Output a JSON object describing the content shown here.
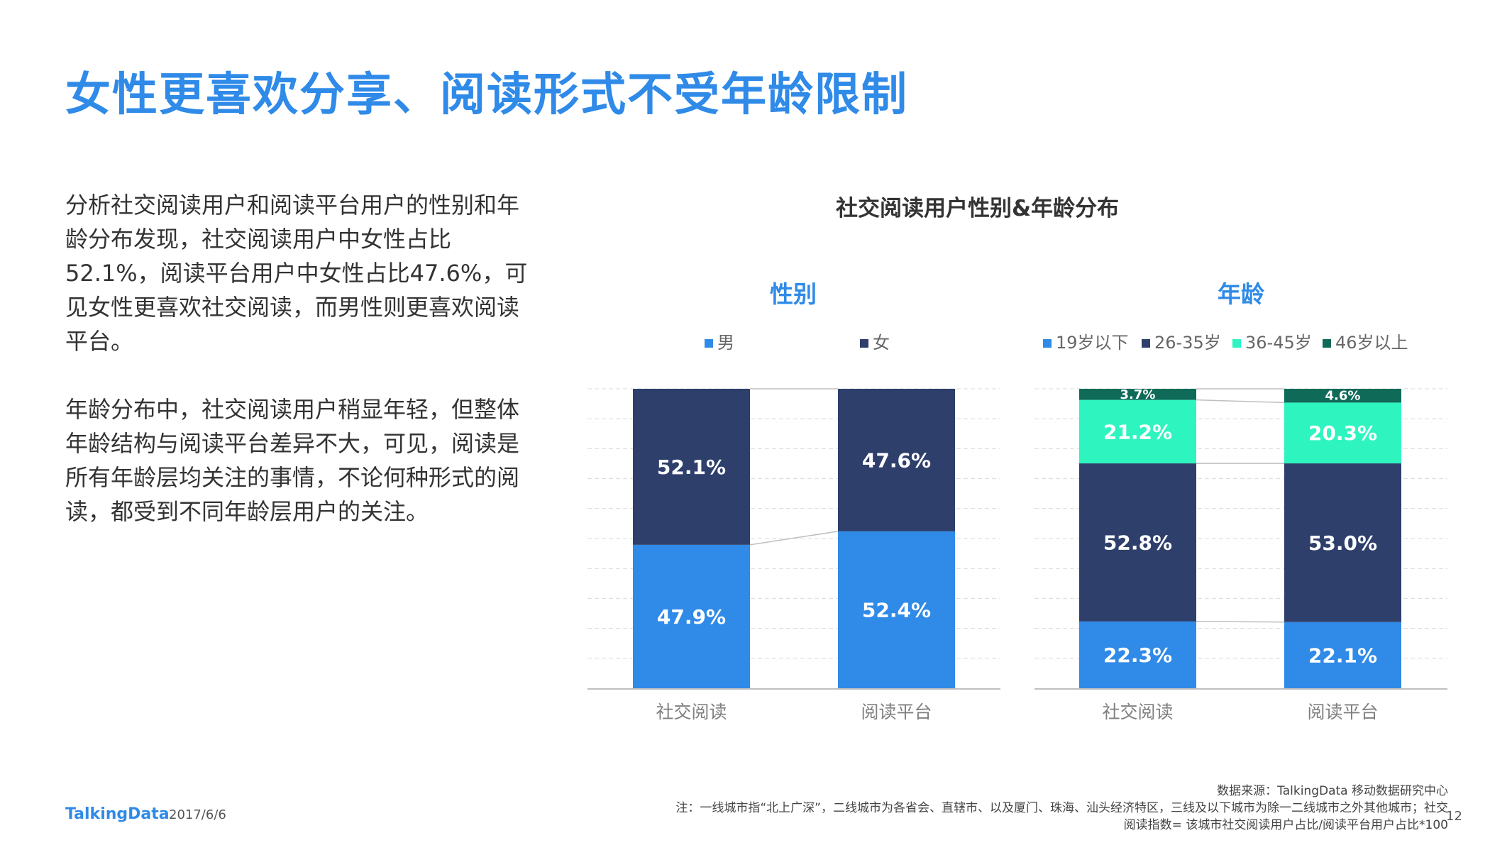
{
  "slide": {
    "title": "女性更喜欢分享、阅读形式不受年龄限制",
    "paragraph1": "分析社交阅读用户和阅读平台用户的性别和年龄分布发现，社交阅读用户中女性占比52.1%，阅读平台用户中女性占比47.6%，可见女性更喜欢社交阅读，而男性则更喜欢阅读平台。",
    "paragraph2": "年龄分布中，社交阅读用户稍显年轻，但整体年龄结构与阅读平台差异不大，可见，阅读是所有年龄层均关注的事情，不论何种形式的阅读，都受到不同年龄层用户的关注。",
    "chart_title": "社交阅读用户性别&年龄分布",
    "footer_logo": "TalkingData",
    "footer_date": "2017/6/6",
    "page_number": "12",
    "source_note": "数据来源：TalkingData 移动数据研究中心",
    "city_note": "注：一线城市指“北上广深”，二线城市为各省会、直辖市、以及厦门、珠海、汕头经济特区，三线及以下城市为除一二线城市之外其他城市；社交",
    "index_note": "阅读指数= 该城市社交阅读用户占比/阅读平台用户占比*100"
  },
  "colors": {
    "title_blue": "#2f8ae8",
    "male": "#2f8ae8",
    "female": "#2e3f6b",
    "age_19": "#2f8ae8",
    "age_26": "#2e3f6b",
    "age_36": "#2ef5c0",
    "age_46": "#0f6b58"
  },
  "chart_data": [
    {
      "type": "bar",
      "stacked": true,
      "percent": true,
      "title": "性别",
      "categories": [
        "社交阅读",
        "阅读平台"
      ],
      "series": [
        {
          "name": "男",
          "values": [
            47.9,
            52.4
          ],
          "labels": [
            "47.9%",
            "52.4%"
          ],
          "color": "#2f8ae8"
        },
        {
          "name": "女",
          "values": [
            52.1,
            47.6
          ],
          "labels": [
            "52.1%",
            "47.6%"
          ],
          "color": "#2e3f6b"
        }
      ],
      "ylim": [
        0,
        100
      ],
      "grid": true,
      "legend": "top"
    },
    {
      "type": "bar",
      "stacked": true,
      "percent": true,
      "title": "年龄",
      "categories": [
        "社交阅读",
        "阅读平台"
      ],
      "series": [
        {
          "name": "19岁以下",
          "values": [
            22.3,
            22.1
          ],
          "labels": [
            "22.3%",
            "22.1%"
          ],
          "color": "#2f8ae8"
        },
        {
          "name": "26-35岁",
          "values": [
            52.8,
            53.0
          ],
          "labels": [
            "52.8%",
            "53.0%"
          ],
          "color": "#2e3f6b"
        },
        {
          "name": "36-45岁",
          "values": [
            21.2,
            20.3
          ],
          "labels": [
            "21.2%",
            "20.3%"
          ],
          "color": "#2ef5c0"
        },
        {
          "name": "46岁以上",
          "values": [
            3.7,
            4.6
          ],
          "labels": [
            "3.7%",
            "4.6%"
          ],
          "color": "#0f6b58"
        }
      ],
      "ylim": [
        0,
        100
      ],
      "grid": true,
      "legend": "top"
    }
  ]
}
